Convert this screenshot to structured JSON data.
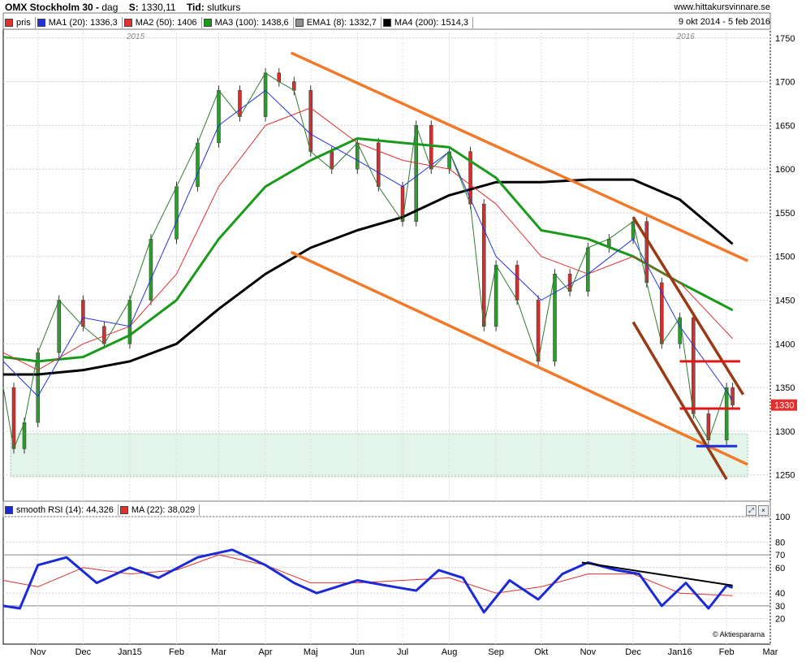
{
  "header": {
    "instrument": "OMX Stockholm 30 -",
    "period": "dag",
    "close_label": "S:",
    "close_value": "1330,11",
    "time_label": "Tid:",
    "time_value": "slutkurs",
    "website": "www.hittakursvinnare.se",
    "date_range": "9 okt 2014 - 5 feb 2016"
  },
  "legend": [
    {
      "label": "pris",
      "color": "#e03030"
    },
    {
      "label": "MA1 (20): 1336,3",
      "color": "#2233dd"
    },
    {
      "label": "MA2 (50): 1406",
      "color": "#e03030"
    },
    {
      "label": "MA3 (100): 1438,6",
      "color": "#1a9a1a"
    },
    {
      "label": "EMA1 (8): 1332,7",
      "color": "#909090"
    },
    {
      "label": "MA4 (200): 1514,3",
      "color": "#000000"
    }
  ],
  "rsi_legend": [
    {
      "label": "smooth RSI (14): 44,326",
      "color": "#1a2ad8"
    },
    {
      "label": "MA (22): 38,029",
      "color": "#e03030"
    }
  ],
  "last_price_tag": "1330",
  "year_labels": [
    "2015",
    "2016"
  ],
  "credit": "© Aktiespararna",
  "colors": {
    "trend_orange": "#f07a2a",
    "trend_brown": "#9a3a14",
    "support_red": "#e01818",
    "support_blue": "#1d2ee0",
    "zone_green": "#e3f4ea"
  },
  "chart_data": [
    {
      "type": "line",
      "title": "OMX Stockholm 30",
      "ylim": [
        1220,
        1760
      ],
      "y_ticks": [
        1250,
        1300,
        1350,
        1400,
        1450,
        1500,
        1550,
        1600,
        1650,
        1700,
        1750
      ],
      "x_ticks": [
        "Nov",
        "Dec",
        "Jan15",
        "Feb",
        "Mar",
        "Apr",
        "Maj",
        "Jun",
        "Jul",
        "Aug",
        "Sep",
        "Okt",
        "Nov",
        "Dec",
        "Jan16",
        "Feb",
        "Mar"
      ],
      "x_tick_dates": [
        "2014-11-01",
        "2014-12-01",
        "2015-01-01",
        "2015-02-01",
        "2015-03-01",
        "2015-04-01",
        "2015-05-01",
        "2015-06-01",
        "2015-07-01",
        "2015-08-01",
        "2015-09-01",
        "2015-10-01",
        "2015-11-01",
        "2015-12-01",
        "2016-01-01",
        "2016-02-01",
        "2016-03-01"
      ],
      "xlim": [
        "2014-10-09",
        "2016-03-01"
      ],
      "series": [
        {
          "name": "pris",
          "color": "#2e7d2e",
          "dates": [
            "2014-10-09",
            "2014-10-16",
            "2014-10-23",
            "2014-11-01",
            "2014-11-15",
            "2014-12-01",
            "2014-12-15",
            "2015-01-01",
            "2015-01-15",
            "2015-02-01",
            "2015-02-15",
            "2015-03-01",
            "2015-03-15",
            "2015-04-01",
            "2015-04-10",
            "2015-04-20",
            "2015-05-01",
            "2015-05-15",
            "2015-06-01",
            "2015-06-15",
            "2015-07-01",
            "2015-07-10",
            "2015-07-20",
            "2015-08-01",
            "2015-08-15",
            "2015-08-24",
            "2015-09-01",
            "2015-09-15",
            "2015-09-29",
            "2015-10-10",
            "2015-10-20",
            "2015-11-01",
            "2015-11-15",
            "2015-12-01",
            "2015-12-10",
            "2015-12-20",
            "2016-01-01",
            "2016-01-10",
            "2016-01-20",
            "2016-02-01",
            "2016-02-05"
          ],
          "values": [
            1350,
            1280,
            1310,
            1390,
            1450,
            1420,
            1400,
            1450,
            1520,
            1580,
            1630,
            1690,
            1660,
            1710,
            1700,
            1690,
            1620,
            1600,
            1630,
            1580,
            1540,
            1650,
            1600,
            1620,
            1560,
            1420,
            1490,
            1450,
            1380,
            1480,
            1460,
            1510,
            1520,
            1540,
            1470,
            1400,
            1430,
            1320,
            1290,
            1350,
            1330
          ]
        },
        {
          "name": "MA1 (20)",
          "color": "#2233dd",
          "dates": [
            "2014-10-09",
            "2014-11-01",
            "2014-12-01",
            "2015-01-01",
            "2015-02-01",
            "2015-03-01",
            "2015-04-01",
            "2015-05-01",
            "2015-06-01",
            "2015-07-01",
            "2015-08-01",
            "2015-09-01",
            "2015-10-01",
            "2015-11-01",
            "2015-12-01",
            "2016-01-01",
            "2016-02-05"
          ],
          "values": [
            1380,
            1340,
            1430,
            1420,
            1540,
            1650,
            1690,
            1640,
            1610,
            1580,
            1620,
            1500,
            1450,
            1480,
            1520,
            1420,
            1336
          ]
        },
        {
          "name": "MA2 (50)",
          "color": "#e03030",
          "dates": [
            "2014-10-09",
            "2014-11-01",
            "2014-12-01",
            "2015-01-01",
            "2015-02-01",
            "2015-03-01",
            "2015-04-01",
            "2015-05-01",
            "2015-06-01",
            "2015-07-01",
            "2015-08-01",
            "2015-09-01",
            "2015-10-01",
            "2015-11-01",
            "2015-12-01",
            "2016-01-01",
            "2016-02-05"
          ],
          "values": [
            1390,
            1370,
            1400,
            1420,
            1480,
            1580,
            1650,
            1670,
            1630,
            1610,
            1600,
            1560,
            1500,
            1480,
            1500,
            1470,
            1406
          ]
        },
        {
          "name": "MA3 (100)",
          "color": "#1a9a1a",
          "dates": [
            "2014-10-09",
            "2014-11-01",
            "2014-12-01",
            "2015-01-01",
            "2015-02-01",
            "2015-03-01",
            "2015-04-01",
            "2015-05-01",
            "2015-06-01",
            "2015-07-01",
            "2015-08-01",
            "2015-09-01",
            "2015-10-01",
            "2015-11-01",
            "2015-12-01",
            "2016-01-01",
            "2016-02-05"
          ],
          "values": [
            1385,
            1380,
            1385,
            1410,
            1450,
            1520,
            1580,
            1610,
            1635,
            1630,
            1625,
            1590,
            1530,
            1520,
            1500,
            1470,
            1438.6
          ]
        },
        {
          "name": "MA4 (200)",
          "color": "#000000",
          "dates": [
            "2014-10-09",
            "2014-11-01",
            "2014-12-01",
            "2015-01-01",
            "2015-02-01",
            "2015-03-01",
            "2015-04-01",
            "2015-05-01",
            "2015-06-01",
            "2015-07-01",
            "2015-08-01",
            "2015-09-01",
            "2015-10-01",
            "2015-11-01",
            "2015-12-01",
            "2016-01-01",
            "2016-02-05"
          ],
          "values": [
            1365,
            1365,
            1370,
            1380,
            1400,
            1440,
            1480,
            1510,
            1530,
            1545,
            1570,
            1585,
            1585,
            1588,
            1588,
            1565,
            1514.3
          ]
        }
      ],
      "annotations": [
        {
          "type": "trendline",
          "color": "#f07a2a",
          "from": [
            "2015-04-18",
            1733
          ],
          "to": [
            "2016-02-15",
            1495
          ]
        },
        {
          "type": "trendline",
          "color": "#f07a2a",
          "from": [
            "2015-04-18",
            1505
          ],
          "to": [
            "2016-02-15",
            1262
          ]
        },
        {
          "type": "trendline",
          "color": "#9a3a14",
          "from": [
            "2015-12-01",
            1545
          ],
          "to": [
            "2016-02-12",
            1342
          ]
        },
        {
          "type": "trendline",
          "color": "#9a3a14",
          "from": [
            "2015-12-01",
            1425
          ],
          "to": [
            "2016-02-01",
            1245
          ]
        },
        {
          "type": "hline",
          "color": "#e01818",
          "from": [
            "2016-01-01",
            1380
          ],
          "to": [
            "2016-02-10",
            1380
          ]
        },
        {
          "type": "hline",
          "color": "#e01818",
          "from": [
            "2016-01-01",
            1326
          ],
          "to": [
            "2016-02-10",
            1326
          ]
        },
        {
          "type": "hline",
          "color": "#1d2ee0",
          "from": [
            "2016-01-12",
            1283
          ],
          "to": [
            "2016-02-08",
            1283
          ]
        },
        {
          "type": "zone",
          "color": "#e3f4ea",
          "from": [
            "2014-10-14",
            1248
          ],
          "to": [
            "2016-02-15",
            1297
          ]
        }
      ]
    },
    {
      "type": "line",
      "title": "smooth RSI (14)",
      "ylim": [
        0,
        100
      ],
      "y_ticks": [
        20,
        30,
        40,
        60,
        70,
        80,
        100
      ],
      "reference_lines": [
        30,
        70
      ],
      "series": [
        {
          "name": "smooth RSI (14)",
          "color": "#1a2ad8",
          "dates": [
            "2014-10-09",
            "2014-10-20",
            "2014-11-01",
            "2014-11-20",
            "2014-12-10",
            "2015-01-01",
            "2015-01-20",
            "2015-02-15",
            "2015-03-10",
            "2015-04-01",
            "2015-04-20",
            "2015-05-05",
            "2015-06-01",
            "2015-06-20",
            "2015-07-10",
            "2015-07-25",
            "2015-08-10",
            "2015-08-24",
            "2015-09-10",
            "2015-09-29",
            "2015-10-15",
            "2015-11-01",
            "2015-11-20",
            "2015-12-05",
            "2015-12-20",
            "2016-01-05",
            "2016-01-20",
            "2016-02-01",
            "2016-02-05"
          ],
          "values": [
            30,
            28,
            62,
            68,
            48,
            60,
            52,
            68,
            74,
            62,
            48,
            40,
            50,
            46,
            42,
            58,
            52,
            25,
            50,
            35,
            55,
            64,
            58,
            55,
            30,
            48,
            28,
            46,
            44.3
          ]
        },
        {
          "name": "MA (22)",
          "color": "#e03030",
          "dates": [
            "2014-10-09",
            "2014-11-01",
            "2014-12-01",
            "2015-01-01",
            "2015-02-01",
            "2015-03-01",
            "2015-04-01",
            "2015-05-01",
            "2015-06-01",
            "2015-07-01",
            "2015-08-01",
            "2015-09-01",
            "2015-10-01",
            "2015-11-01",
            "2015-12-01",
            "2016-01-01",
            "2016-02-05"
          ],
          "values": [
            50,
            45,
            60,
            55,
            58,
            70,
            62,
            48,
            48,
            50,
            52,
            40,
            45,
            55,
            55,
            40,
            38
          ]
        }
      ],
      "annotations": [
        {
          "type": "trendline",
          "color": "#000000",
          "from": [
            "2015-10-28",
            64
          ],
          "to": [
            "2016-02-05",
            46
          ]
        }
      ]
    }
  ]
}
